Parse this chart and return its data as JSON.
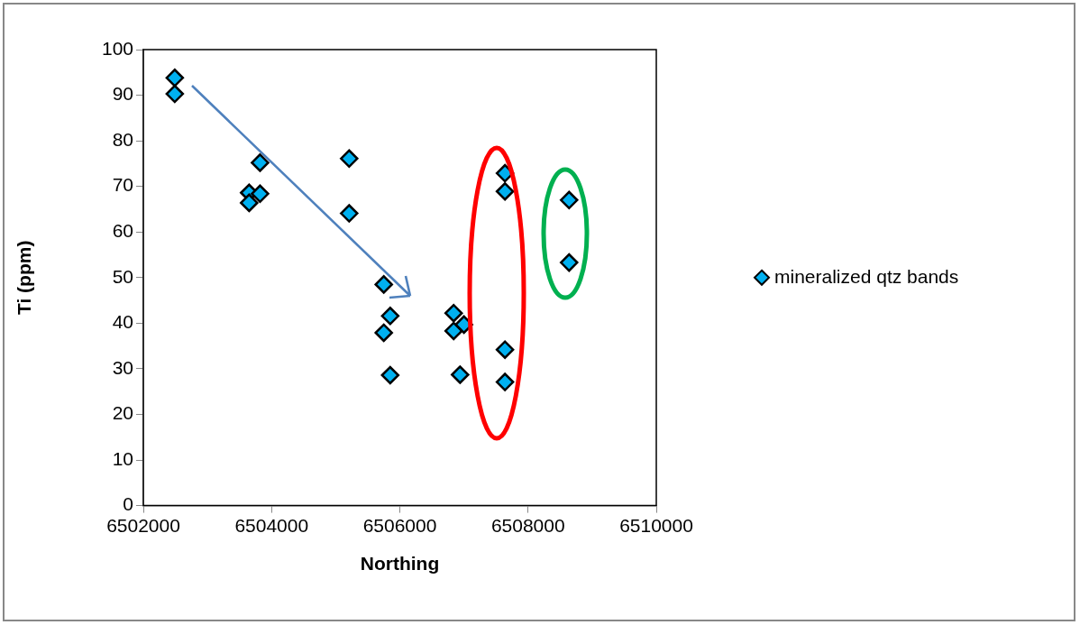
{
  "chart_data": {
    "type": "scatter",
    "xlabel": "Northing",
    "ylabel": "Ti (ppm)",
    "xlim": [
      6502000,
      6510000
    ],
    "xticks": [
      6502000,
      6504000,
      6506000,
      6508000,
      6510000
    ],
    "ylim": [
      0,
      100
    ],
    "yticks": [
      0,
      10,
      20,
      30,
      40,
      50,
      60,
      70,
      80,
      90,
      100
    ],
    "grid": false,
    "legend": "right",
    "marker": "diamond",
    "series": [
      {
        "name": "mineralized qtz bands",
        "color": "#00b0f0",
        "x": [
          6502490,
          6502490,
          6503650,
          6503650,
          6503820,
          6503820,
          6505210,
          6505210,
          6505750,
          6505750,
          6505850,
          6505850,
          6506840,
          6506840,
          6507000,
          6506940,
          6507640,
          6507640,
          6507640,
          6507640,
          6508640,
          6508640
        ],
        "values": [
          93.8,
          90.3,
          68.6,
          66.4,
          75.2,
          68.4,
          76.1,
          64.1,
          48.5,
          37.9,
          41.6,
          28.6,
          42.2,
          38.3,
          39.7,
          28.7,
          72.9,
          68.9,
          34.2,
          27.1,
          67.0,
          53.3
        ]
      }
    ]
  }
}
